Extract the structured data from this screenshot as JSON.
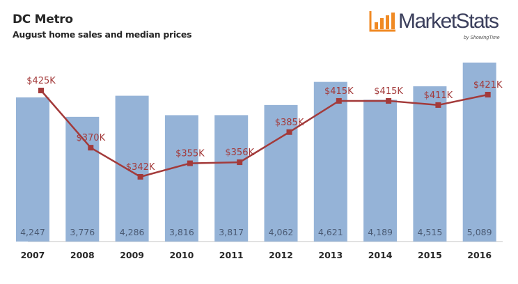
{
  "header": {
    "title": "DC Metro",
    "subtitle": "August home sales and median prices"
  },
  "logo": {
    "name": "MarketStats",
    "tagline": "by ShowingTime",
    "color": "#f08a24"
  },
  "chart_data": {
    "type": "bar",
    "title": "DC Metro",
    "subtitle": "August home sales and median prices",
    "categories": [
      "2007",
      "2008",
      "2009",
      "2010",
      "2011",
      "2012",
      "2013",
      "2014",
      "2015",
      "2016"
    ],
    "series": [
      {
        "name": "Home sales",
        "type": "bar",
        "values": [
          4247,
          3776,
          4286,
          3816,
          3817,
          4062,
          4621,
          4189,
          4515,
          5089
        ],
        "labels": [
          "4,247",
          "3,776",
          "4,286",
          "3,816",
          "3,817",
          "4,062",
          "4,621",
          "4,189",
          "4,515",
          "5,089"
        ],
        "color": "#95b3d7"
      },
      {
        "name": "Median price",
        "type": "line",
        "values": [
          425,
          370,
          342,
          355,
          356,
          385,
          415,
          415,
          411,
          421
        ],
        "labels": [
          "$425K",
          "$370K",
          "$342K",
          "$355K",
          "$356K",
          "$385K",
          "$415K",
          "$415K",
          "$411K",
          "$421K"
        ],
        "color": "#a33a3a"
      }
    ],
    "xlabel": "",
    "ylabel": "",
    "grid": false,
    "legend": "none"
  }
}
